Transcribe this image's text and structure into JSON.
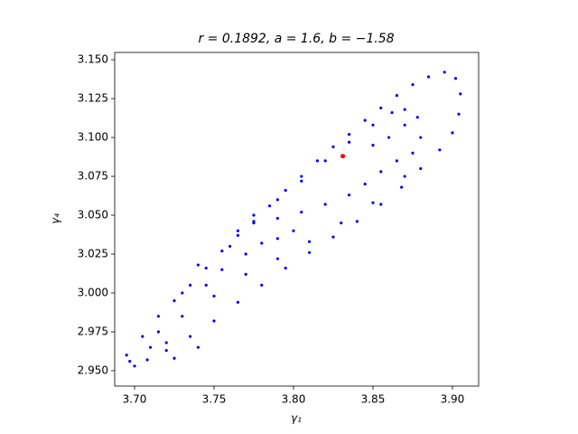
{
  "chart_data": {
    "type": "scatter",
    "title": "r = 0.1892, a = 1.6, b = −1.58",
    "x_label": "γ₁",
    "y_label": "γ₄",
    "xlim": [
      3.6875,
      3.9165
    ],
    "ylim": [
      2.9401,
      3.1547
    ],
    "xticks": [
      {
        "value": 3.7,
        "label": "3.70"
      },
      3.75,
      {
        "value": 3.8,
        "label": "3.80"
      },
      3.85,
      {
        "value": 3.9,
        "label": "3.90"
      }
    ],
    "yticks": [
      {
        "value": 2.95,
        "label": "2.950"
      },
      2.975,
      {
        "value": 3.0,
        "label": "3.000"
      },
      3.025,
      {
        "value": 3.05,
        "label": "3.050"
      },
      3.075,
      {
        "value": 3.1,
        "label": "3.100"
      },
      3.125,
      {
        "value": 3.15,
        "label": "3.150"
      }
    ],
    "grid": false,
    "series": [
      {
        "color": "#0000ff",
        "marker_size": 1.6,
        "x": [
          3.695,
          3.705,
          3.715,
          3.725,
          3.735,
          3.745,
          3.755,
          3.765,
          3.775,
          3.785,
          3.795,
          3.805,
          3.815,
          3.825,
          3.835,
          3.845,
          3.855,
          3.865,
          3.875,
          3.885,
          3.895,
          3.902,
          3.905,
          3.904,
          3.9,
          3.892,
          3.88,
          3.868,
          3.855,
          3.84,
          3.825,
          3.81,
          3.795,
          3.78,
          3.765,
          3.75,
          3.735,
          3.72,
          3.708,
          3.7,
          3.697,
          3.87,
          3.85,
          3.83,
          3.81,
          3.79,
          3.77,
          3.75,
          3.73,
          3.715,
          3.775,
          3.79,
          3.805,
          3.82,
          3.835,
          3.85,
          3.862,
          3.87,
          3.878,
          3.88,
          3.875,
          3.865,
          3.855,
          3.845,
          3.835,
          3.82,
          3.805,
          3.79,
          3.775,
          3.765,
          3.76,
          3.77,
          3.78,
          3.74,
          3.745,
          3.73,
          3.755,
          3.79,
          3.8,
          3.86,
          3.87,
          3.85,
          3.72,
          3.71,
          3.725,
          3.74
        ],
        "values": [
          2.96,
          2.972,
          2.985,
          2.995,
          3.005,
          3.016,
          3.027,
          3.037,
          3.046,
          3.056,
          3.066,
          3.075,
          3.085,
          3.094,
          3.102,
          3.111,
          3.119,
          3.127,
          3.134,
          3.139,
          3.142,
          3.138,
          3.128,
          3.115,
          3.103,
          3.092,
          3.08,
          3.068,
          3.057,
          3.046,
          3.036,
          3.026,
          3.016,
          3.005,
          2.994,
          2.982,
          2.972,
          2.963,
          2.957,
          2.953,
          2.956,
          3.075,
          3.058,
          3.045,
          3.033,
          3.022,
          3.012,
          2.998,
          2.985,
          2.975,
          3.05,
          3.06,
          3.072,
          3.085,
          3.097,
          3.108,
          3.116,
          3.118,
          3.113,
          3.1,
          3.09,
          3.085,
          3.078,
          3.07,
          3.063,
          3.057,
          3.052,
          3.048,
          3.045,
          3.04,
          3.03,
          3.025,
          3.032,
          3.018,
          3.005,
          3.0,
          3.015,
          3.035,
          3.04,
          3.1,
          3.108,
          3.095,
          2.968,
          2.965,
          2.958,
          2.965
        ]
      },
      {
        "color": "#ff0000",
        "marker_size": 2.5,
        "x": [
          3.831
        ],
        "values": [
          3.088
        ]
      }
    ]
  }
}
